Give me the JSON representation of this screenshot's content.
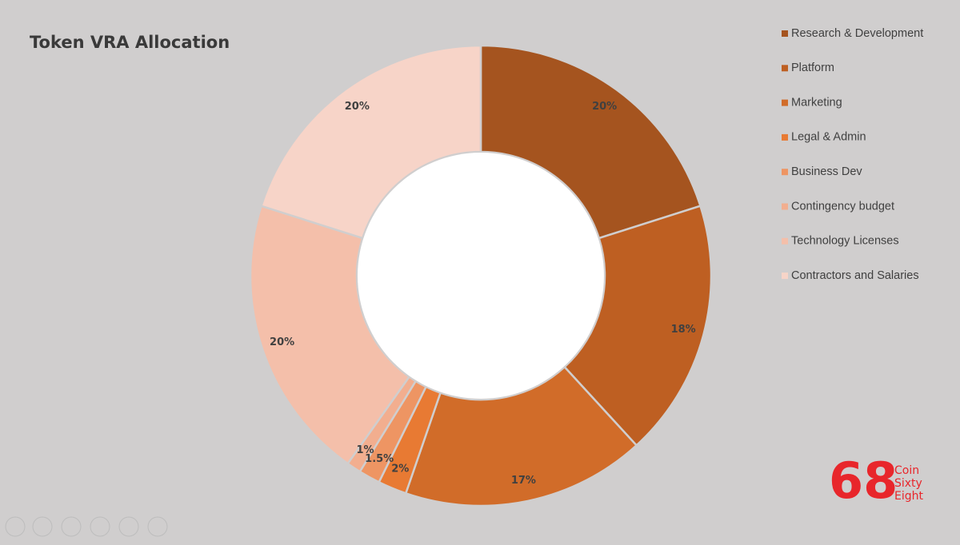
{
  "chart_data": {
    "type": "doughnut",
    "title": "Token VRA Allocation",
    "categories": [
      "Research & Development",
      "Platform",
      "Marketing",
      "Legal & Admin",
      "Business Dev",
      "Contingency budget",
      "Technology Licenses",
      "Contractors and Salaries"
    ],
    "values": [
      20,
      18,
      17,
      2,
      1.5,
      1,
      20,
      20
    ],
    "value_labels": [
      "20%",
      "18%",
      "17%",
      "2%",
      "1.5%",
      "1%",
      "20%",
      "20%"
    ],
    "colors": [
      "#a5541f",
      "#be5f22",
      "#d16c29",
      "#e87a33",
      "#ee9563",
      "#f2ae8f",
      "#f4bfaa",
      "#f7d4c8"
    ],
    "legend": "right"
  },
  "logo": {
    "mark": "68",
    "lines": [
      "Coin",
      "Sixty",
      "Eight"
    ]
  }
}
